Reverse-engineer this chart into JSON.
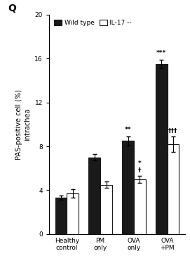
{
  "categories": [
    "Healthy\ncontrol",
    "PM\nonly",
    "OVA\nonly",
    "OVA\n+PM"
  ],
  "wild_type_values": [
    3.3,
    7.0,
    8.5,
    15.5
  ],
  "wild_type_errors": [
    0.2,
    0.3,
    0.4,
    0.4
  ],
  "il17_values": [
    3.7,
    4.5,
    5.0,
    8.2
  ],
  "il17_errors": [
    0.4,
    0.3,
    0.3,
    0.7
  ],
  "wt_annotations": [
    "",
    "",
    "**",
    "***"
  ],
  "il17_annotations": [
    "",
    "",
    "*\n†",
    "†††"
  ],
  "ylabel": "PAS-positive cell (%)\nintrachea",
  "ylim": [
    0,
    20
  ],
  "yticks": [
    0,
    4,
    8,
    12,
    16,
    20
  ],
  "legend_labels": [
    "Wild type",
    "IL-17 --"
  ],
  "bar_width": 0.35,
  "panel_label": "Q",
  "wt_color": "#1a1a1a",
  "il17_color": "#ffffff",
  "il17_edgecolor": "#1a1a1a"
}
